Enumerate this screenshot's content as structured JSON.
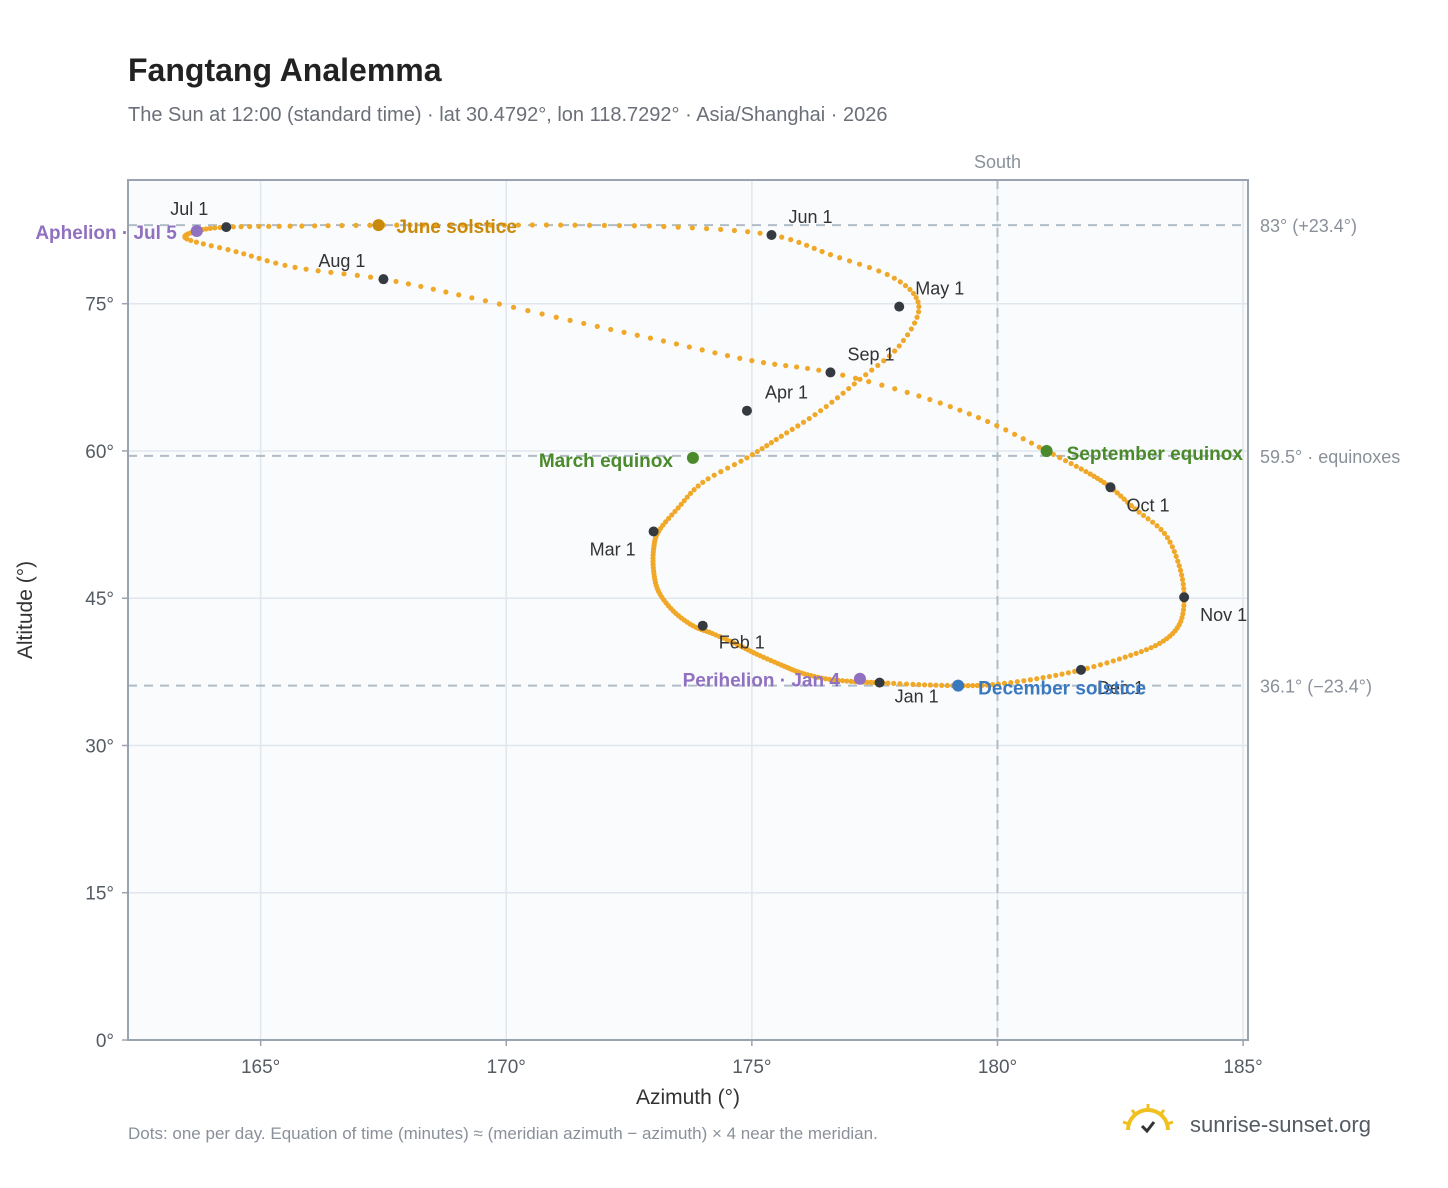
{
  "title": "Fangtang Analemma",
  "subtitle": "The Sun at 12:00 (standard time) · lat 30.4792°, lon 118.7292° · Asia/Shanghai · 2026",
  "footnote": "Dots: one per day. Equation of time (minutes) ≈ (meridian azimuth − azimuth) × 4 near the meridian.",
  "brand": "sunrise-sunset.org",
  "colors": {
    "path": "#f0a828",
    "month_dot": "#343a40",
    "june_solstice": "#c98a0c",
    "december_solstice": "#3a78c0",
    "equinox": "#4a8a2a",
    "apsis": "#9070c0",
    "plot_bg": "#f9fbfd",
    "grid": "#e1e7ee",
    "ref_line": "#b0bcc6"
  },
  "chart_data": {
    "type": "scatter",
    "title": "Fangtang Analemma",
    "xlabel": "Azimuth (°)",
    "ylabel": "Altitude (°)",
    "xlim": [
      162.3,
      185.1
    ],
    "ylim": [
      0,
      87.6
    ],
    "x_ticks": [
      165,
      170,
      175,
      180,
      185
    ],
    "x_tick_labels": [
      "165°",
      "170°",
      "175°",
      "180°",
      "185°"
    ],
    "y_ticks": [
      0,
      15,
      30,
      45,
      60,
      75
    ],
    "y_tick_labels": [
      "0°",
      "15°",
      "30°",
      "45°",
      "60°",
      "75°"
    ],
    "grid": true,
    "meridian": {
      "azimuth": 180,
      "label": "South"
    },
    "reference_lines": [
      {
        "altitude": 83.0,
        "label": "83° (+23.4°)"
      },
      {
        "altitude": 59.5,
        "label": "59.5° · equinoxes"
      },
      {
        "altitude": 36.1,
        "label": "36.1° (−23.4°)"
      }
    ],
    "month_markers": [
      {
        "label": "Jan 1",
        "azimuth": 177.6,
        "altitude": 36.4
      },
      {
        "label": "Feb 1",
        "azimuth": 174.0,
        "altitude": 42.2
      },
      {
        "label": "Mar 1",
        "azimuth": 173.0,
        "altitude": 51.8
      },
      {
        "label": "Apr 1",
        "azimuth": 174.9,
        "altitude": 64.1
      },
      {
        "label": "May 1",
        "azimuth": 178.0,
        "altitude": 74.7
      },
      {
        "label": "Jun 1",
        "azimuth": 175.4,
        "altitude": 82.0
      },
      {
        "label": "Jul 1",
        "azimuth": 164.3,
        "altitude": 82.8
      },
      {
        "label": "Aug 1",
        "azimuth": 167.5,
        "altitude": 77.5
      },
      {
        "label": "Sep 1",
        "azimuth": 176.6,
        "altitude": 68.0
      },
      {
        "label": "Oct 1",
        "azimuth": 182.3,
        "altitude": 56.3
      },
      {
        "label": "Nov 1",
        "azimuth": 183.8,
        "altitude": 45.1
      },
      {
        "label": "Dec 1",
        "azimuth": 181.7,
        "altitude": 37.7
      }
    ],
    "events": [
      {
        "label": "June solstice",
        "azimuth": 167.4,
        "altitude": 83.0,
        "kind": "june_solstice"
      },
      {
        "label": "December solstice",
        "azimuth": 179.2,
        "altitude": 36.1,
        "kind": "december_solstice"
      },
      {
        "label": "March equinox",
        "azimuth": 173.8,
        "altitude": 59.3,
        "kind": "equinox"
      },
      {
        "label": "September equinox",
        "azimuth": 181.0,
        "altitude": 60.0,
        "kind": "equinox"
      },
      {
        "label": "Aphelion · Jul 5",
        "azimuth": 163.7,
        "altitude": 82.4,
        "kind": "apsis"
      },
      {
        "label": "Perihelion · Jan 4",
        "azimuth": 177.2,
        "altitude": 36.8,
        "kind": "apsis"
      }
    ],
    "series": [
      {
        "marker": "daily-dot",
        "azimuth": [
          177.6,
          177.1,
          176.5,
          176.0,
          175.6,
          175.1,
          174.7,
          174.2,
          173.8,
          173.4,
          173.1,
          173.0,
          173.0,
          173.1,
          173.5,
          174.0,
          174.9,
          175.6,
          176.4,
          177.2,
          178.0,
          178.4,
          177.9,
          176.6,
          175.4,
          173.5,
          171.4,
          169.4,
          167.5,
          165.6,
          164.3,
          163.7,
          163.5,
          164.5,
          165.7,
          167.5,
          169.3,
          171.3,
          173.2,
          175.0,
          176.6,
          178.4,
          179.8,
          181.0,
          181.8,
          182.3,
          182.8,
          183.4,
          183.7,
          183.8,
          183.7,
          183.3,
          182.6,
          181.7,
          180.8,
          179.9,
          179.2,
          178.4,
          177.6
        ],
        "altitude": [
          36.4,
          36.5,
          36.8,
          37.4,
          38.2,
          39.3,
          40.3,
          41.4,
          42.2,
          43.7,
          45.7,
          47.8,
          50.0,
          51.8,
          54.2,
          56.8,
          59.3,
          61.5,
          64.1,
          67.3,
          70.7,
          74.7,
          77.6,
          80.0,
          82.0,
          82.8,
          83.0,
          83.0,
          83.0,
          82.9,
          82.8,
          82.4,
          81.6,
          80.3,
          78.7,
          77.5,
          75.6,
          73.3,
          71.2,
          69.2,
          68.0,
          65.6,
          63.0,
          60.0,
          57.9,
          56.3,
          54.1,
          51.6,
          48.3,
          45.1,
          42.3,
          40.4,
          39.0,
          37.7,
          36.8,
          36.2,
          36.1,
          36.2,
          36.4
        ]
      }
    ]
  }
}
